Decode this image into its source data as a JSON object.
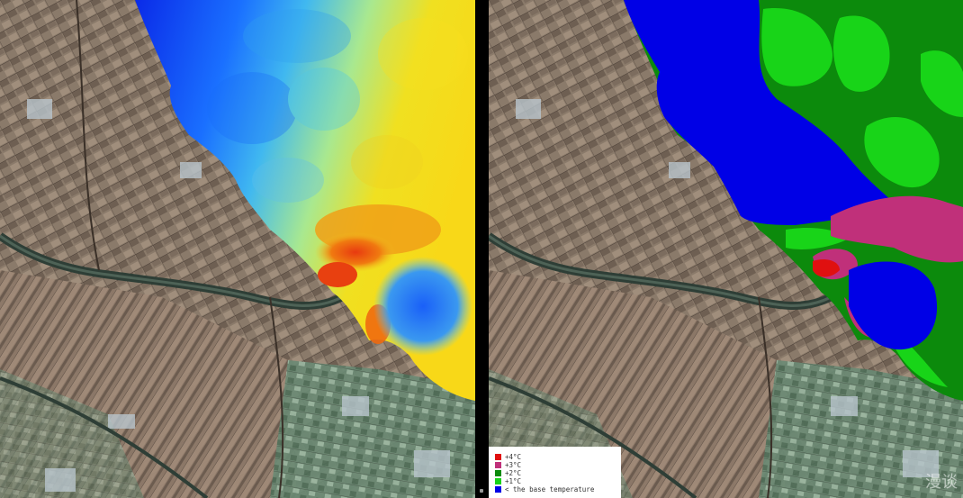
{
  "legend": {
    "items": [
      {
        "label": "+4°C",
        "color": "#e01010"
      },
      {
        "label": "+3°C",
        "color": "#c0307a"
      },
      {
        "label": "+2°C",
        "color": "#0c8a0c"
      },
      {
        "label": "+1°C",
        "color": "#18d418"
      },
      {
        "label": "< the base temperature",
        "color": "#0000e6"
      }
    ]
  },
  "watermark": "漫谈",
  "colors": {
    "land": "#86786a",
    "land_dark": "#5e5148",
    "field_green": "#5e8a70",
    "river": "#2b3a32",
    "thermal_cold": "#0a3cff",
    "thermal_mid": "#40b8f0",
    "thermal_warm": "#f0e020",
    "thermal_hot": "#f06010",
    "class_base": "#0000e6",
    "class_1": "#18d418",
    "class_2": "#0c8a0c",
    "class_3": "#c0307a",
    "class_4": "#e01010"
  }
}
